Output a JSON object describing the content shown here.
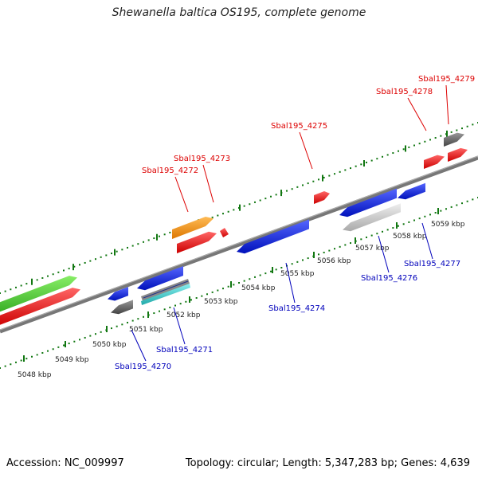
{
  "title": "Shewanella baltica OS195, complete genome",
  "footer": {
    "accession": "Accession: NC_009997",
    "summary": "Topology: circular; Length: 5,347,283 bp; Genes: 4,639"
  },
  "colors": {
    "backbone": "#888888",
    "tick": "#117711",
    "forward_label": "#dd0000",
    "reverse_label": "#0000bb",
    "red": "#ee1111",
    "blue": "#1122dd",
    "green": "#44cc33",
    "orange": "#ff9911",
    "gray": "#666666",
    "lightgray": "#bbbbbb",
    "cyan": "#44cccc"
  },
  "ticks": [
    "5048 kbp",
    "5049 kbp",
    "5050 kbp",
    "5051 kbp",
    "5052 kbp",
    "5053 kbp",
    "5054 kbp",
    "5055 kbp",
    "5056 kbp",
    "5057 kbp",
    "5058 kbp",
    "5059 kbp"
  ],
  "forward_labels": [
    "Sbal195_4272",
    "Sbal195_4273",
    "Sbal195_4275",
    "Sbal195_4278",
    "Sbal195_4279"
  ],
  "reverse_labels": [
    "Sbal195_4270",
    "Sbal195_4271",
    "Sbal195_4274",
    "Sbal195_4276",
    "Sbal195_4277"
  ],
  "features": [
    {
      "strand": "forward",
      "color": "green"
    },
    {
      "strand": "forward",
      "color": "red"
    },
    {
      "strand": "forward",
      "color": "orange",
      "label": "Sbal195_4272"
    },
    {
      "strand": "forward",
      "color": "red",
      "label": "Sbal195_4273"
    },
    {
      "strand": "forward",
      "color": "red"
    },
    {
      "strand": "forward",
      "color": "red",
      "label": "Sbal195_4275"
    },
    {
      "strand": "forward",
      "color": "red",
      "label": "Sbal195_4278"
    },
    {
      "strand": "forward",
      "color": "gray",
      "label": "Sbal195_4279"
    },
    {
      "strand": "forward",
      "color": "red"
    },
    {
      "strand": "reverse",
      "color": "blue",
      "label": "Sbal195_4270"
    },
    {
      "strand": "reverse",
      "color": "gray"
    },
    {
      "strand": "reverse",
      "color": "blue",
      "label": "Sbal195_4271"
    },
    {
      "strand": "reverse",
      "color": "cyan"
    },
    {
      "strand": "reverse",
      "color": "blue",
      "label": "Sbal195_4274"
    },
    {
      "strand": "reverse",
      "color": "blue"
    },
    {
      "strand": "reverse",
      "color": "lightgray",
      "label": "Sbal195_4276"
    },
    {
      "strand": "reverse",
      "color": "blue",
      "label": "Sbal195_4277"
    }
  ]
}
